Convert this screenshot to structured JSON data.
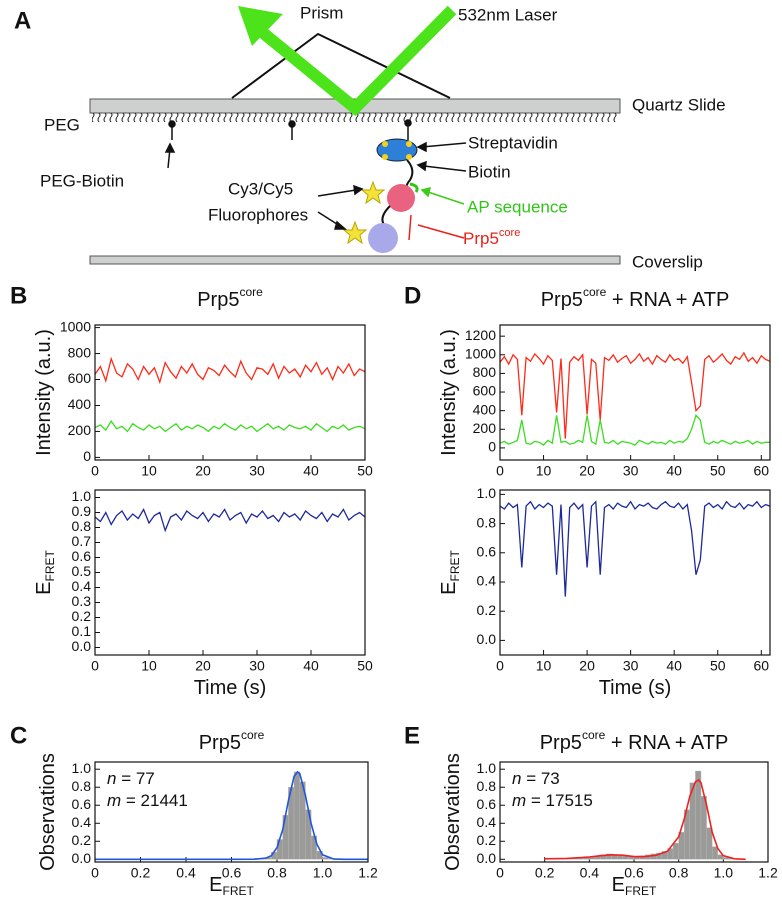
{
  "diagram": {
    "label": "A",
    "prism": "Prism",
    "laser": "532nm Laser",
    "slide": "Quartz Slide",
    "peg": "PEG",
    "peg_biotin": "PEG-Biotin",
    "streptavidin": "Streptavidin",
    "biotin": "Biotin",
    "fluorophores": [
      "Cy3/Cy5",
      "Fluorophores"
    ],
    "ap": "AP sequence",
    "prp5": {
      "text": "Prp5",
      "sup": "core"
    },
    "coverslip": "Coverslip"
  },
  "panel_labels": [
    "B",
    "C",
    "D",
    "E"
  ],
  "chart_data": [
    {
      "type": "line",
      "title": {
        "text": "Prp5",
        "sup": "core"
      },
      "ylabel": {
        "text": "Intensity (a.u.)"
      },
      "x": [
        0,
        1,
        2,
        3,
        4,
        5,
        6,
        7,
        8,
        9,
        10,
        11,
        12,
        13,
        14,
        15,
        16,
        17,
        18,
        19,
        20,
        21,
        22,
        23,
        24,
        25,
        26,
        27,
        28,
        29,
        30,
        31,
        32,
        33,
        34,
        35,
        36,
        37,
        38,
        39,
        40,
        41,
        42,
        43,
        44,
        45,
        46,
        47,
        48,
        49,
        50
      ],
      "series": [
        {
          "color": "#ff2a1a",
          "values": [
            640,
            700,
            590,
            760,
            650,
            620,
            720,
            680,
            600,
            700,
            640,
            690,
            580,
            730,
            660,
            610,
            700,
            650,
            720,
            640,
            600,
            690,
            670,
            630,
            710,
            660,
            620,
            740,
            650,
            600,
            690,
            680,
            640,
            720,
            610,
            700,
            650,
            680,
            620,
            710,
            660,
            730,
            640,
            690,
            600,
            700,
            650,
            720,
            630,
            680,
            660
          ]
        },
        {
          "color": "#3ddc22",
          "values": [
            230,
            250,
            210,
            280,
            220,
            240,
            200,
            260,
            230,
            210,
            250,
            220,
            240,
            200,
            230,
            260,
            210,
            240,
            220,
            250,
            230,
            200,
            240,
            220,
            260,
            230,
            210,
            250,
            220,
            240,
            200,
            230,
            260,
            220,
            240,
            210,
            250,
            230,
            220,
            240,
            210,
            260,
            230,
            200,
            240,
            220,
            250,
            210,
            230,
            240,
            220
          ]
        }
      ],
      "xlim": [
        0,
        50
      ],
      "xticks": [
        0,
        10,
        20,
        30,
        40,
        50
      ],
      "ylim": [
        -20,
        1020
      ],
      "yticks": [
        0,
        200,
        400,
        600,
        800,
        1000
      ]
    },
    {
      "type": "line",
      "ylabel": {
        "text": "E",
        "sub": "FRET"
      },
      "xlabel": {
        "text": "Time (s)"
      },
      "x": [
        0,
        1,
        2,
        3,
        4,
        5,
        6,
        7,
        8,
        9,
        10,
        11,
        12,
        13,
        14,
        15,
        16,
        17,
        18,
        19,
        20,
        21,
        22,
        23,
        24,
        25,
        26,
        27,
        28,
        29,
        30,
        31,
        32,
        33,
        34,
        35,
        36,
        37,
        38,
        39,
        40,
        41,
        42,
        43,
        44,
        45,
        46,
        47,
        48,
        49,
        50
      ],
      "series": [
        {
          "color": "#1f2a9a",
          "values": [
            0.87,
            0.84,
            0.9,
            0.82,
            0.88,
            0.91,
            0.85,
            0.89,
            0.86,
            0.92,
            0.83,
            0.88,
            0.9,
            0.78,
            0.87,
            0.89,
            0.85,
            0.91,
            0.88,
            0.86,
            0.9,
            0.84,
            0.89,
            0.87,
            0.92,
            0.85,
            0.88,
            0.9,
            0.83,
            0.89,
            0.87,
            0.91,
            0.86,
            0.88,
            0.84,
            0.9,
            0.87,
            0.89,
            0.85,
            0.91,
            0.88,
            0.86,
            0.9,
            0.84,
            0.89,
            0.87,
            0.92,
            0.85,
            0.88,
            0.9,
            0.87
          ]
        }
      ],
      "xlim": [
        0,
        50
      ],
      "xticks": [
        0,
        10,
        20,
        30,
        40,
        50
      ],
      "ylim": [
        -0.05,
        1.05
      ],
      "yticks": [
        {
          "value": 0,
          "label": "0.0"
        },
        0.1,
        0.2,
        0.3,
        0.4,
        0.5,
        0.6,
        0.7,
        0.8,
        0.9,
        {
          "value": 1,
          "label": "1.0"
        }
      ]
    },
    {
      "type": "line",
      "title": {
        "text": "Prp5",
        "sup": "core",
        "rest": " + RNA + ATP"
      },
      "ylabel": {
        "text": "Intensity (a.u.)"
      },
      "x": [
        0,
        1,
        2,
        3,
        4,
        5,
        6,
        7,
        8,
        9,
        10,
        11,
        12,
        13,
        14,
        15,
        16,
        17,
        18,
        19,
        20,
        21,
        22,
        23,
        24,
        25,
        26,
        27,
        28,
        29,
        30,
        31,
        32,
        33,
        34,
        35,
        36,
        37,
        38,
        39,
        40,
        41,
        42,
        43,
        44,
        45,
        46,
        47,
        48,
        49,
        50,
        51,
        52,
        53,
        54,
        55,
        56,
        57,
        58,
        59,
        60,
        61,
        62
      ],
      "series": [
        {
          "color": "#ff2a1a",
          "values": [
            920,
            980,
            900,
            1000,
            950,
            350,
            970,
            930,
            1010,
            960,
            900,
            990,
            940,
            380,
            960,
            100,
            920,
            980,
            940,
            1000,
            360,
            950,
            910,
            300,
            970,
            940,
            1000,
            920,
            960,
            990,
            910,
            950,
            1010,
            930,
            970,
            900,
            990,
            950,
            920,
            1000,
            940,
            960,
            910,
            980,
            700,
            400,
            450,
            950,
            990,
            920,
            960,
            1010,
            940,
            900,
            980,
            950,
            1020,
            930,
            970,
            910,
            990,
            950,
            930
          ]
        },
        {
          "color": "#3ddc22",
          "values": [
            50,
            70,
            40,
            60,
            80,
            300,
            50,
            40,
            70,
            60,
            30,
            80,
            50,
            350,
            60,
            70,
            40,
            50,
            80,
            60,
            350,
            70,
            40,
            300,
            60,
            50,
            80,
            40,
            70,
            60,
            50,
            30,
            80,
            60,
            40,
            70,
            50,
            60,
            40,
            80,
            50,
            70,
            60,
            100,
            200,
            350,
            300,
            60,
            40,
            70,
            50,
            80,
            60,
            40,
            70,
            50,
            60,
            80,
            40,
            70,
            50,
            60,
            60
          ]
        }
      ],
      "xlim": [
        0,
        62
      ],
      "xticks": [
        0,
        10,
        20,
        30,
        40,
        50,
        60
      ],
      "ylim": [
        -130,
        1320
      ],
      "yticks": [
        0,
        200,
        400,
        600,
        800,
        1000,
        1200
      ]
    },
    {
      "type": "line",
      "ylabel": {
        "text": "E",
        "sub": "FRET"
      },
      "xlabel": {
        "text": "Time (s)"
      },
      "x": [
        0,
        1,
        2,
        3,
        4,
        5,
        6,
        7,
        8,
        9,
        10,
        11,
        12,
        13,
        14,
        15,
        16,
        17,
        18,
        19,
        20,
        21,
        22,
        23,
        24,
        25,
        26,
        27,
        28,
        29,
        30,
        31,
        32,
        33,
        34,
        35,
        36,
        37,
        38,
        39,
        40,
        41,
        42,
        43,
        44,
        45,
        46,
        47,
        48,
        49,
        50,
        51,
        52,
        53,
        54,
        55,
        56,
        57,
        58,
        59,
        60,
        61,
        62
      ],
      "series": [
        {
          "color": "#1f2a9a",
          "values": [
            0.92,
            0.9,
            0.94,
            0.91,
            0.93,
            0.5,
            0.92,
            0.95,
            0.9,
            0.93,
            0.91,
            0.94,
            0.92,
            0.45,
            0.93,
            0.3,
            0.91,
            0.94,
            0.9,
            0.93,
            0.5,
            0.92,
            0.95,
            0.45,
            0.91,
            0.93,
            0.9,
            0.94,
            0.92,
            0.91,
            0.95,
            0.9,
            0.93,
            0.92,
            0.94,
            0.91,
            0.9,
            0.93,
            0.95,
            0.92,
            0.91,
            0.94,
            0.9,
            0.93,
            0.75,
            0.45,
            0.55,
            0.92,
            0.94,
            0.91,
            0.93,
            0.9,
            0.95,
            0.92,
            0.91,
            0.94,
            0.9,
            0.93,
            0.92,
            0.95,
            0.91,
            0.93,
            0.92
          ]
        }
      ],
      "xlim": [
        0,
        62
      ],
      "xticks": [
        0,
        10,
        20,
        30,
        40,
        50,
        60
      ],
      "ylim": [
        -0.1,
        1.03
      ],
      "yticks": [
        {
          "value": 0,
          "label": "0.0"
        },
        0.2,
        0.4,
        0.6,
        0.8,
        {
          "value": 1,
          "label": "1.0"
        }
      ]
    },
    {
      "type": "histogram",
      "title": {
        "text": "Prp5",
        "sup": "core"
      },
      "ylabel": {
        "text": "Observations"
      },
      "xlabel": {
        "text": "E",
        "sub": "FRET"
      },
      "bins": [
        0.6,
        0.625,
        0.65,
        0.675,
        0.7,
        0.725,
        0.75,
        0.775,
        0.8,
        0.825,
        0.85,
        0.875,
        0.9,
        0.925,
        0.95,
        0.975,
        1.0,
        1.025,
        1.05,
        1.075,
        1.1
      ],
      "values": [
        0,
        0,
        0,
        0,
        0.01,
        0.01,
        0.02,
        0.08,
        0.22,
        0.49,
        0.8,
        0.97,
        0.86,
        0.55,
        0.26,
        0.09,
        0.02,
        0.01,
        0,
        0
      ],
      "color": "#9a9a98",
      "fit": {
        "color": "#2255dd",
        "x": [
          0,
          0.2,
          0.4,
          0.6,
          0.7,
          0.75,
          0.775,
          0.8,
          0.825,
          0.85,
          0.875,
          0.89,
          0.9,
          0.925,
          0.95,
          0.975,
          1.0,
          1.05,
          1.1,
          1.2
        ],
        "values": [
          0,
          0,
          0,
          0,
          0.001,
          0.012,
          0.04,
          0.13,
          0.33,
          0.65,
          0.92,
          0.97,
          0.95,
          0.71,
          0.4,
          0.17,
          0.05,
          0.002,
          0,
          0
        ]
      },
      "annotations": [
        {
          "symbol": "n",
          "sep": " = ",
          "value": 77
        },
        {
          "symbol": "m",
          "sep": " = ",
          "value": 21441
        }
      ],
      "xlim": [
        0,
        1.2
      ],
      "xticks": [
        0,
        0.2,
        0.4,
        0.6,
        0.8,
        {
          "value": 1,
          "label": "1.0"
        },
        1.2
      ],
      "ylim": [
        -0.03,
        1.08
      ],
      "yticks": [
        {
          "value": 0,
          "label": "0.0"
        },
        0.2,
        0.4,
        0.6,
        0.8,
        {
          "value": 1,
          "label": "1.0"
        }
      ]
    },
    {
      "type": "histogram",
      "title": {
        "text": "Prp5",
        "sup": "core",
        "rest": " + RNA + ATP"
      },
      "ylabel": {
        "text": "Observations"
      },
      "xlabel": {
        "text": "E",
        "sub": "FRET"
      },
      "bins": [
        0.2,
        0.225,
        0.25,
        0.275,
        0.3,
        0.325,
        0.35,
        0.375,
        0.4,
        0.425,
        0.45,
        0.475,
        0.5,
        0.525,
        0.55,
        0.575,
        0.6,
        0.625,
        0.65,
        0.675,
        0.7,
        0.725,
        0.75,
        0.775,
        0.8,
        0.825,
        0.85,
        0.875,
        0.9,
        0.925,
        0.95,
        0.975,
        1.0,
        1.025,
        1.05,
        1.075,
        1.1
      ],
      "values": [
        0.005,
        0.005,
        0.01,
        0.01,
        0.015,
        0.02,
        0.02,
        0.03,
        0.03,
        0.04,
        0.05,
        0.06,
        0.05,
        0.04,
        0.04,
        0.03,
        0.03,
        0.04,
        0.05,
        0.06,
        0.07,
        0.09,
        0.12,
        0.18,
        0.3,
        0.55,
        0.85,
        0.98,
        0.7,
        0.35,
        0.14,
        0.05,
        0.02,
        0.01,
        0.005,
        0
      ],
      "color": "#9a9a98",
      "fit": {
        "color": "#ee2222",
        "x": [
          0.2,
          0.3,
          0.4,
          0.45,
          0.5,
          0.55,
          0.6,
          0.65,
          0.7,
          0.75,
          0.8,
          0.825,
          0.85,
          0.875,
          0.89,
          0.9,
          0.925,
          0.95,
          0.975,
          1.0,
          1.05,
          1.1
        ],
        "values": [
          0.005,
          0.01,
          0.025,
          0.04,
          0.05,
          0.045,
          0.03,
          0.03,
          0.045,
          0.09,
          0.25,
          0.45,
          0.7,
          0.86,
          0.88,
          0.85,
          0.6,
          0.3,
          0.12,
          0.04,
          0.005,
          0
        ]
      },
      "annotations": [
        {
          "symbol": "n",
          "sep": " = ",
          "value": 73
        },
        {
          "symbol": "m",
          "sep": " = ",
          "value": 17515
        }
      ],
      "xlim": [
        0,
        1.2
      ],
      "xticks": [
        0,
        0.2,
        0.4,
        0.6,
        0.8,
        {
          "value": 1,
          "label": "1.0"
        },
        1.2
      ],
      "ylim": [
        -0.03,
        1.08
      ],
      "yticks": [
        {
          "value": 0,
          "label": "0.0"
        },
        0.2,
        0.4,
        0.6,
        0.8,
        {
          "value": 1,
          "label": "1.0"
        }
      ]
    }
  ]
}
